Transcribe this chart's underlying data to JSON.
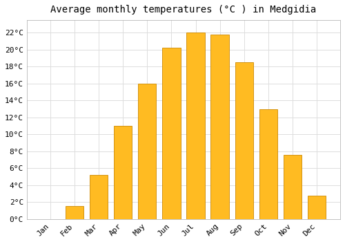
{
  "title": "Average monthly temperatures (°C ) in Medgidia",
  "months": [
    "Jan",
    "Feb",
    "Mar",
    "Apr",
    "May",
    "Jun",
    "Jul",
    "Aug",
    "Sep",
    "Oct",
    "Nov",
    "Dec"
  ],
  "values": [
    0,
    1.5,
    5.2,
    11.0,
    16.0,
    20.2,
    22.0,
    21.8,
    18.5,
    13.0,
    7.6,
    2.8
  ],
  "bar_color": "#FFBB22",
  "bar_edge_color": "#CC8800",
  "ylim": [
    0,
    23.5
  ],
  "yticks": [
    0,
    2,
    4,
    6,
    8,
    10,
    12,
    14,
    16,
    18,
    20,
    22
  ],
  "ytick_labels": [
    "0°C",
    "2°C",
    "4°C",
    "6°C",
    "8°C",
    "10°C",
    "12°C",
    "14°C",
    "16°C",
    "18°C",
    "20°C",
    "22°C"
  ],
  "background_color": "#FFFFFF",
  "grid_color": "#DDDDDD",
  "title_fontsize": 10,
  "tick_fontsize": 8,
  "font_family": "monospace"
}
